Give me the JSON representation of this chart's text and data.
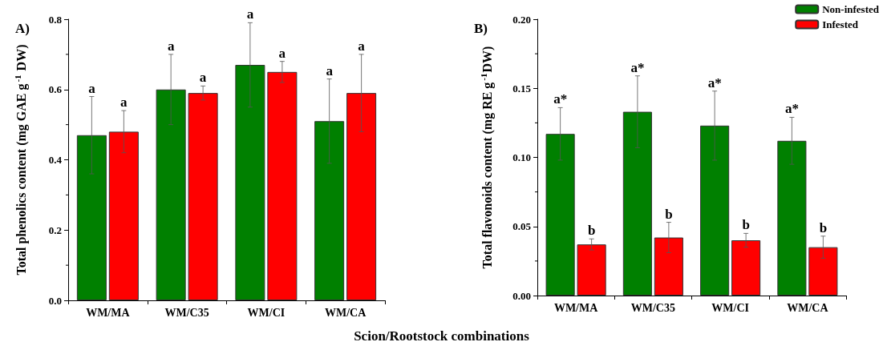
{
  "chart_data": [
    {
      "type": "bar",
      "title": "A)",
      "xlabel": "Scion/Rootstock combinations",
      "ylabel": "Total phenolics content (mg GAE g$^{-1}$ DW)",
      "categories": [
        "WM/MA",
        "WM/C35",
        "WM/CI",
        "WM/CA"
      ],
      "series": [
        {
          "color": "#008000",
          "values": [
            0.47,
            0.6,
            0.67,
            0.51
          ],
          "errors": [
            0.11,
            0.1,
            0.12,
            0.12
          ],
          "value_labels": [
            "a",
            "a",
            "a",
            "a"
          ]
        },
        {
          "color": "#ff0000",
          "values": [
            0.48,
            0.59,
            0.65,
            0.59
          ],
          "errors": [
            0.06,
            0.02,
            0.03,
            0.11
          ],
          "value_labels": [
            "a",
            "a",
            "a",
            "a"
          ]
        }
      ],
      "ylim": [
        0,
        0.8
      ],
      "yticks": [
        {
          "value": 0,
          "label": "0.0"
        },
        0.2,
        0.4,
        0.6,
        0.8
      ],
      "grid": false,
      "legend": false
    },
    {
      "type": "bar",
      "title": "B)",
      "ylabel": "Total flavonoids content (mg RE g$^{-1}$DW)",
      "categories": [
        "WM/MA",
        "WM/C35",
        "WM/CI",
        "WM/CA"
      ],
      "series": [
        {
          "name": "Non-infested",
          "color": "#008000",
          "values": [
            0.117,
            0.133,
            0.123,
            0.112
          ],
          "errors": [
            0.019,
            0.026,
            0.025,
            0.017
          ],
          "value_labels": [
            "a*",
            "a*",
            "a*",
            "a*"
          ]
        },
        {
          "name": "Infested",
          "color": "#ff0000",
          "values": [
            0.037,
            0.042,
            0.04,
            0.035
          ],
          "errors": [
            0.004,
            0.011,
            0.005,
            0.008
          ],
          "value_labels": [
            "b",
            "b",
            "b",
            "b"
          ]
        }
      ],
      "ylim": [
        0,
        0.2
      ],
      "yticks": [
        {
          "value": 0,
          "label": "0.00"
        },
        0.05,
        {
          "value": 0.1,
          "label": "0.10"
        },
        0.15,
        {
          "value": 0.2,
          "label": "0.20"
        }
      ],
      "grid": false,
      "legend": "top right"
    }
  ]
}
